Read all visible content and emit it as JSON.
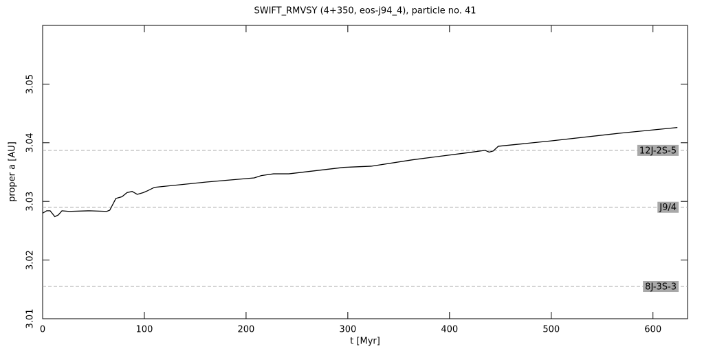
{
  "chart_data": {
    "type": "line",
    "title": "SWIFT_RMVSY (4+350, eos-j94_4), particle no. 41",
    "xlabel": "t [Myr]",
    "ylabel": "proper a [AU]",
    "xlim": [
      0,
      634
    ],
    "ylim": [
      3.01,
      3.06
    ],
    "xticks": [
      0,
      100,
      200,
      300,
      400,
      500,
      600
    ],
    "yticks": [
      3.01,
      3.02,
      3.03,
      3.04,
      3.05
    ],
    "series": [
      {
        "color": "#000000",
        "x": [
          0,
          4,
          7.4,
          12,
          15.5,
          19,
          26,
          46,
          63,
          66,
          72,
          78,
          83,
          88,
          93,
          99,
          103,
          110,
          161,
          208,
          215,
          227,
          242,
          296,
          323,
          364,
          418,
          435,
          439,
          443,
          448,
          499,
          566,
          624
        ],
        "values": [
          3.028,
          3.0284,
          3.0284,
          3.0274,
          3.0277,
          3.0284,
          3.0283,
          3.0284,
          3.0283,
          3.0285,
          3.0305,
          3.0308,
          3.0315,
          3.0317,
          3.0312,
          3.0315,
          3.0318,
          3.0324,
          3.0333,
          3.034,
          3.0344,
          3.0347,
          3.0347,
          3.0358,
          3.036,
          3.0371,
          3.0383,
          3.0387,
          3.0384,
          3.0386,
          3.0394,
          3.0403,
          3.0416,
          3.0426
        ]
      }
    ],
    "reference_lines": [
      {
        "label": "12J-2S-5",
        "value": 3.0387
      },
      {
        "label": "J9/4",
        "value": 3.029
      },
      {
        "label": "8J-3S-3",
        "value": 3.0155
      }
    ],
    "reference_color": "#a8a8a8"
  }
}
